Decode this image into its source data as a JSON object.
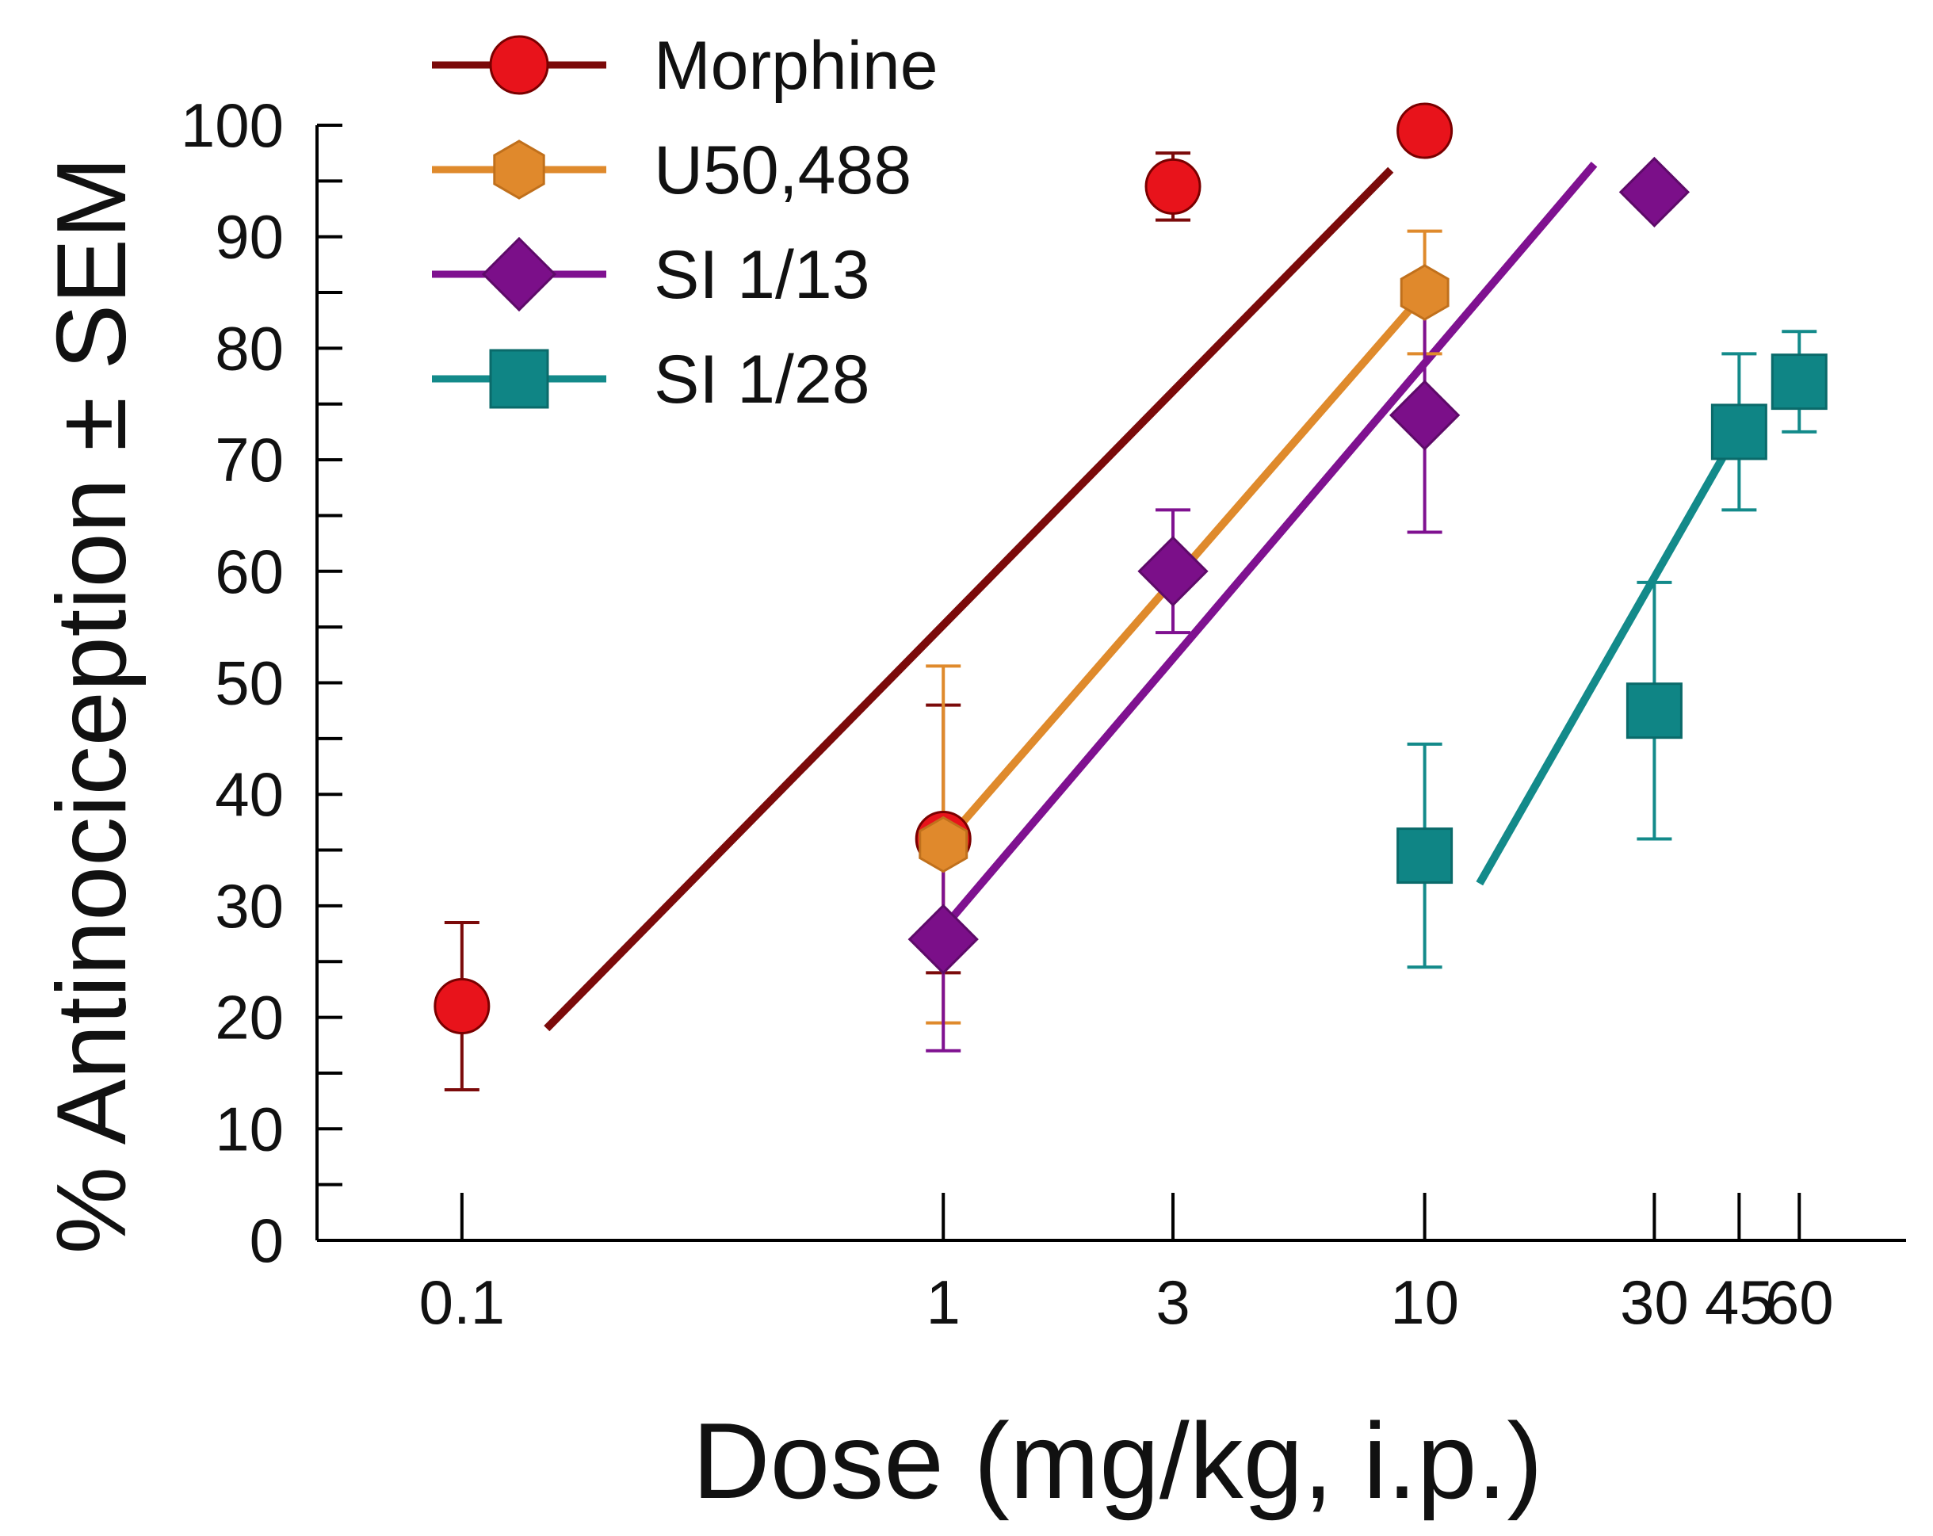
{
  "chart_data": {
    "type": "scatter",
    "title": "",
    "xlabel": "Dose (mg/kg, i.p.)",
    "ylabel": "% Antinociception ± SEM",
    "xscale": "log",
    "xlim": [
      0.05,
      100
    ],
    "ylim": [
      0,
      100
    ],
    "x_ticks": [
      0.1,
      1,
      3,
      10,
      30,
      45,
      60
    ],
    "x_tick_labels": [
      "0.1",
      "1",
      "3",
      "10",
      "30",
      "45",
      "60"
    ],
    "y_ticks": [
      0,
      10,
      20,
      30,
      40,
      50,
      60,
      70,
      80,
      90,
      100
    ],
    "y_tick_labels": [
      "0",
      "10",
      "20",
      "30",
      "40",
      "50",
      "60",
      "70",
      "80",
      "90",
      "100"
    ],
    "grid": false,
    "legend_position": "top-left",
    "series": [
      {
        "name": "Morphine",
        "marker": "circle",
        "color": "#e8131b",
        "edge_color": "#7a0000",
        "line_color": "#7b0a0a",
        "points": [
          {
            "x": 0.1,
            "y": 21,
            "sem": 7.5
          },
          {
            "x": 1,
            "y": 36,
            "sem": 12
          },
          {
            "x": 3,
            "y": 94.5,
            "sem": 3
          },
          {
            "x": 10,
            "y": 99.5,
            "sem": 0
          }
        ],
        "fit_line": {
          "x": [
            0.15,
            8.5
          ],
          "y": [
            19,
            96
          ]
        }
      },
      {
        "name": "U50,488",
        "marker": "hexagon",
        "color": "#e0892c",
        "edge_color": "#c0701c",
        "line_color": "#df8a2c",
        "points": [
          {
            "x": 1,
            "y": 35.5,
            "sem": 16
          },
          {
            "x": 10,
            "y": 85,
            "sem": 5.5
          }
        ],
        "fit_line": {
          "x": [
            1,
            10
          ],
          "y": [
            35.5,
            85
          ]
        }
      },
      {
        "name": "SI 1/13",
        "marker": "diamond",
        "color": "#7b0f89",
        "edge_color": "#5e0a69",
        "line_color": "#7f1190",
        "points": [
          {
            "x": 1,
            "y": 27,
            "sem": 10
          },
          {
            "x": 3,
            "y": 60,
            "sem": 5.5
          },
          {
            "x": 10,
            "y": 74,
            "sem": 10.5
          },
          {
            "x": 30,
            "y": 94,
            "sem": 1.5
          }
        ],
        "fit_line": {
          "x": [
            1,
            22.5
          ],
          "y": [
            28,
            96.5
          ]
        }
      },
      {
        "name": "SI 1/28",
        "marker": "square",
        "color": "#0f8585",
        "edge_color": "#0a6a6a",
        "line_color": "#138a8a",
        "points": [
          {
            "x": 10,
            "y": 34.5,
            "sem": 10
          },
          {
            "x": 30,
            "y": 47.5,
            "sem": 11.5
          },
          {
            "x": 45,
            "y": 72.5,
            "sem": 7
          },
          {
            "x": 60,
            "y": 77,
            "sem": 4.5
          }
        ],
        "fit_line": {
          "x": [
            13,
            42
          ],
          "y": [
            32,
            70.5
          ]
        }
      }
    ]
  }
}
